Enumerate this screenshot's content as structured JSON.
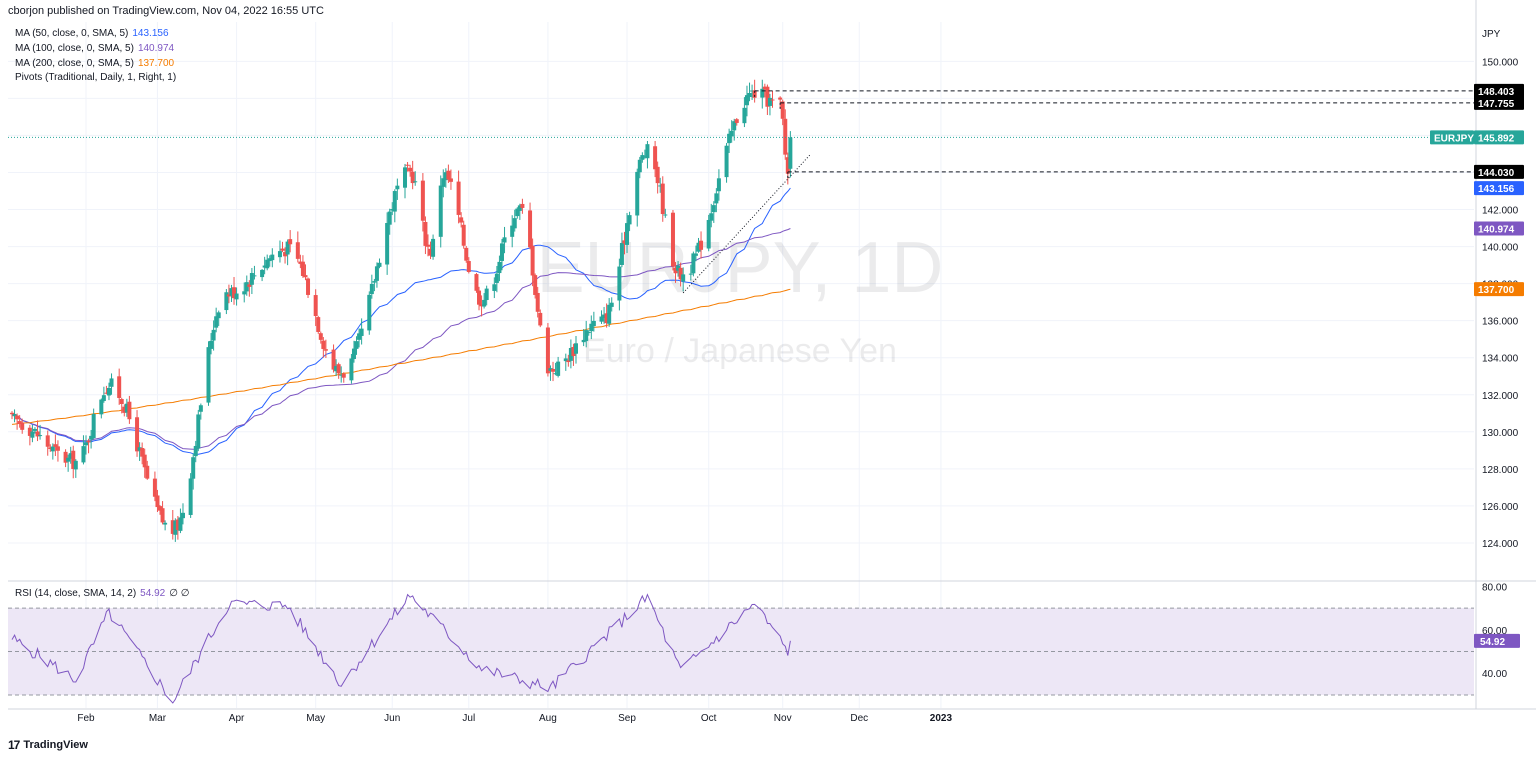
{
  "header": {
    "publisher_line": "cborjon published on TradingView.com, Nov 04, 2022 16:55 UTC"
  },
  "legend": {
    "ma50": {
      "label": "MA (50, close, 0, SMA, 5)",
      "value": "143.156",
      "color": "#2962ff"
    },
    "ma100": {
      "label": "MA (100, close, 0, SMA, 5)",
      "value": "140.974",
      "color": "#7e57c2"
    },
    "ma200": {
      "label": "MA (200, close, 0, SMA, 5)",
      "value": "137.700",
      "color": "#f57c00"
    },
    "pivots": {
      "label": "Pivots (Traditional, Daily, 1, Right, 1)"
    }
  },
  "watermark": {
    "symbol": "EURJPY, 1D",
    "name": "Euro / Japanese Yen"
  },
  "brand": {
    "logo": "17",
    "name": "TradingView"
  },
  "colors": {
    "up": "#26a69a",
    "down": "#ef5350",
    "rsi": "#7e57c2",
    "rsi_band": "#ede7f6",
    "grid": "#f0f3fa"
  },
  "chart_data": [
    {
      "type": "candlestick",
      "symbol": "EURJPY",
      "currency": "JPY",
      "x_labels": [
        "Feb",
        "Mar",
        "Apr",
        "May",
        "Jun",
        "Jul",
        "Aug",
        "Sep",
        "Oct",
        "Nov",
        "Dec",
        "2023"
      ],
      "y_ticks": [
        124,
        126,
        128,
        130,
        132,
        134,
        136,
        138,
        140,
        142,
        144,
        146,
        148,
        150
      ],
      "y_tick_labels": [
        "124.000",
        "126.000",
        "128.000",
        "130.000",
        "132.000",
        "134.000",
        "136.000",
        "138.000",
        "140.000",
        "142.000",
        "144.000",
        "146.000",
        "148.000",
        "150.000"
      ],
      "ylim": [
        122,
        151.8
      ],
      "last_price": {
        "label": "EURJPY",
        "value": 145.892
      },
      "price_tags": [
        {
          "value": 148.403,
          "label": "148.403",
          "kind": "pivot"
        },
        {
          "value": 147.755,
          "label": "147.755",
          "kind": "pivot"
        },
        {
          "value": 144.03,
          "label": "144.030",
          "kind": "pivot"
        },
        {
          "value": 143.156,
          "label": "143.156",
          "kind": "ma50"
        },
        {
          "value": 140.974,
          "label": "140.974",
          "kind": "ma100"
        },
        {
          "value": 137.7,
          "label": "137.700",
          "kind": "ma200"
        }
      ],
      "key_closes": [
        {
          "date": "2022-01-03",
          "close": 130.6
        },
        {
          "date": "2022-01-28",
          "close": 128.4
        },
        {
          "date": "2022-02-10",
          "close": 132.5
        },
        {
          "date": "2022-03-07",
          "close": 124.7
        },
        {
          "date": "2022-03-28",
          "close": 137.5
        },
        {
          "date": "2022-04-21",
          "close": 139.9
        },
        {
          "date": "2022-05-12",
          "close": 133.2
        },
        {
          "date": "2022-06-08",
          "close": 144.0
        },
        {
          "date": "2022-06-16",
          "close": 139.8
        },
        {
          "date": "2022-06-21",
          "close": 143.9
        },
        {
          "date": "2022-07-06",
          "close": 137.2
        },
        {
          "date": "2022-07-21",
          "close": 142.0
        },
        {
          "date": "2022-08-02",
          "close": 133.4
        },
        {
          "date": "2022-08-22",
          "close": 136.0
        },
        {
          "date": "2022-09-09",
          "close": 145.1
        },
        {
          "date": "2022-09-22",
          "close": 138.5
        },
        {
          "date": "2022-10-21",
          "close": 148.3
        },
        {
          "date": "2022-10-31",
          "close": 147.6
        },
        {
          "date": "2022-11-03",
          "close": 144.1
        },
        {
          "date": "2022-11-04",
          "close": 145.892
        }
      ],
      "series": [
        {
          "name": "MA (50, close, 0, SMA, 5)",
          "last": 143.156
        },
        {
          "name": "MA (100, close, 0, SMA, 5)",
          "last": 140.974
        },
        {
          "name": "MA (200, close, 0, SMA, 5)",
          "last": 137.7
        }
      ]
    },
    {
      "type": "line",
      "title": "RSI (14, close, SMA, 14, 2)",
      "value": "54.92",
      "extra": "∅ ∅",
      "y_ticks": [
        40,
        60,
        80
      ],
      "y_tick_labels": [
        "40.00",
        "60.00",
        "80.00"
      ],
      "band": [
        30,
        70
      ],
      "ylim": [
        24,
        82
      ],
      "points": [
        {
          "date": "2022-01-03",
          "value": 56
        },
        {
          "date": "2022-01-28",
          "value": 37
        },
        {
          "date": "2022-02-10",
          "value": 68
        },
        {
          "date": "2022-03-07",
          "value": 27
        },
        {
          "date": "2022-03-29",
          "value": 72
        },
        {
          "date": "2022-04-21",
          "value": 71
        },
        {
          "date": "2022-05-12",
          "value": 35
        },
        {
          "date": "2022-06-08",
          "value": 76
        },
        {
          "date": "2022-07-06",
          "value": 42
        },
        {
          "date": "2022-08-02",
          "value": 33
        },
        {
          "date": "2022-09-09",
          "value": 75
        },
        {
          "date": "2022-09-22",
          "value": 41
        },
        {
          "date": "2022-10-21",
          "value": 72
        },
        {
          "date": "2022-11-03",
          "value": 50
        },
        {
          "date": "2022-11-04",
          "value": 54.92
        }
      ]
    }
  ]
}
